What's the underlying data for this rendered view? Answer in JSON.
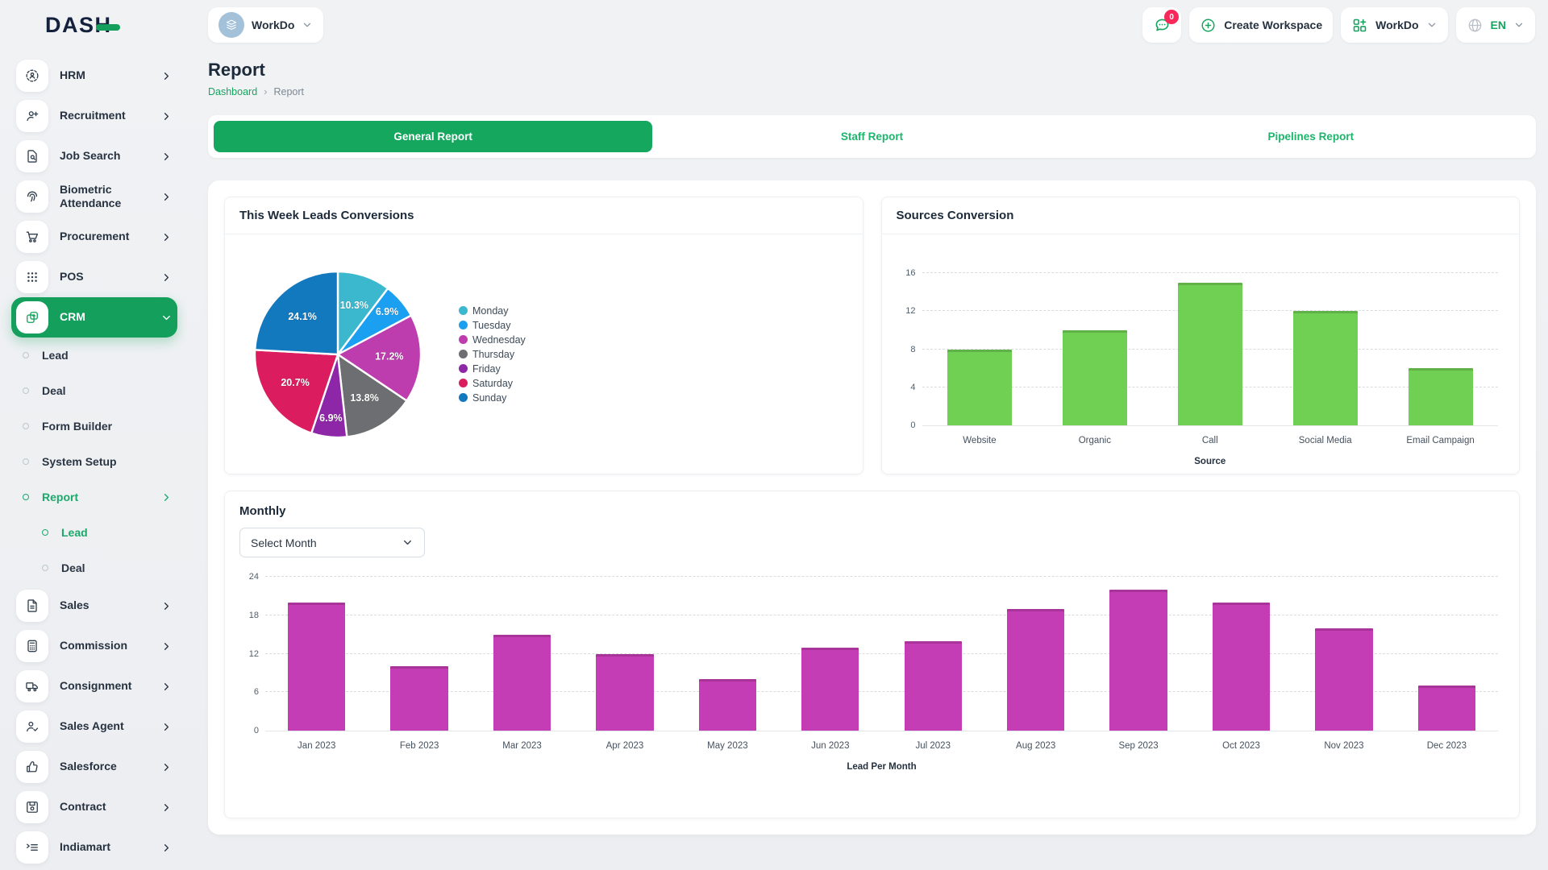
{
  "theme": {
    "accent_green": "#14a05c",
    "badge_pink": "#f8285a"
  },
  "brand": {
    "logo": "DASH"
  },
  "topbar": {
    "workspace_pill": {
      "name": "WorkDo"
    },
    "chat_badge": "0",
    "create_workspace": "Create Workspace",
    "workspace_switcher": "WorkDo",
    "language": "EN"
  },
  "sidebar": {
    "items": [
      {
        "label": "HRM",
        "icon": "hrm-icon",
        "chevron": "right"
      },
      {
        "label": "Recruitment",
        "icon": "recruitment-icon",
        "chevron": "right"
      },
      {
        "label": "Job Search",
        "icon": "job-search-icon",
        "chevron": "right"
      },
      {
        "label": "Biometric Attendance",
        "icon": "biometric-attendance-icon",
        "chevron": "right"
      },
      {
        "label": "Procurement",
        "icon": "procurement-icon",
        "chevron": "right"
      },
      {
        "label": "POS",
        "icon": "pos-icon",
        "chevron": "right"
      },
      {
        "label": "CRM",
        "icon": "crm-icon",
        "chevron": "down",
        "active": true,
        "children": [
          {
            "label": "Lead"
          },
          {
            "label": "Deal"
          },
          {
            "label": "Form Builder"
          },
          {
            "label": "System Setup"
          },
          {
            "label": "Report",
            "active": true,
            "chevron": "right",
            "children": [
              {
                "label": "Lead",
                "active": true
              },
              {
                "label": "Deal"
              }
            ]
          }
        ]
      },
      {
        "label": "Sales",
        "icon": "sales-icon",
        "chevron": "right"
      },
      {
        "label": "Commission",
        "icon": "commission-icon",
        "chevron": "right"
      },
      {
        "label": "Consignment",
        "icon": "consignment-icon",
        "chevron": "right"
      },
      {
        "label": "Sales Agent",
        "icon": "sales-agent-icon",
        "chevron": "right"
      },
      {
        "label": "Salesforce",
        "icon": "salesforce-icon",
        "chevron": "right"
      },
      {
        "label": "Contract",
        "icon": "contract-icon",
        "chevron": "right"
      },
      {
        "label": "Indiamart",
        "icon": "indiamart-icon",
        "chevron": "right"
      }
    ]
  },
  "page": {
    "title": "Report",
    "breadcrumb": {
      "root": "Dashboard",
      "current": "Report"
    }
  },
  "tabs": [
    {
      "label": "General Report",
      "active": true
    },
    {
      "label": "Staff Report",
      "active": false
    },
    {
      "label": "Pipelines Report",
      "active": false
    }
  ],
  "cards": {
    "weekly": {
      "title": "This Week Leads Conversions"
    },
    "sources": {
      "title": "Sources Conversion"
    },
    "monthly": {
      "title": "Monthly",
      "select_placeholder": "Select Month"
    }
  },
  "chart_data": [
    {
      "id": "weekly_leads_pie",
      "type": "pie",
      "title": "This Week Leads Conversions",
      "labels": [
        "Monday",
        "Tuesday",
        "Wednesday",
        "Thursday",
        "Friday",
        "Saturday",
        "Sunday"
      ],
      "values_percent": [
        10.3,
        6.9,
        17.2,
        13.8,
        6.9,
        20.7,
        24.1
      ],
      "slice_labels": [
        "10.3%",
        "6.9%",
        "17.2%",
        "13.8%",
        "6.9%",
        "20.7%",
        "24.1%"
      ],
      "colors": [
        "#3bb8ce",
        "#1b9ff0",
        "#be3dae",
        "#6d6e71",
        "#8d27a8",
        "#db1c5f",
        "#1379be"
      ],
      "legend_position": "right"
    },
    {
      "id": "sources_bar",
      "type": "bar",
      "title": "Sources Conversion",
      "categories": [
        "Website",
        "Organic",
        "Call",
        "Social Media",
        "Email Campaign"
      ],
      "values": [
        8,
        10,
        15,
        12,
        6
      ],
      "xlabel": "Source",
      "ylim": [
        0,
        16
      ],
      "yticks": [
        0,
        4,
        8,
        12,
        16
      ],
      "bar_color": "#70d054",
      "grid": "dashed horizontal"
    },
    {
      "id": "monthly_bar",
      "type": "bar",
      "title": "Monthly",
      "categories": [
        "Jan 2023",
        "Feb 2023",
        "Mar 2023",
        "Apr 2023",
        "May 2023",
        "Jun 2023",
        "Jul 2023",
        "Aug 2023",
        "Sep 2023",
        "Oct 2023",
        "Nov 2023",
        "Dec 2023"
      ],
      "values": [
        20,
        10,
        15,
        12,
        8,
        13,
        14,
        19,
        22,
        20,
        16,
        7
      ],
      "xlabel": "Lead Per Month",
      "ylim": [
        0,
        24
      ],
      "yticks": [
        0,
        6,
        12,
        18,
        24
      ],
      "bar_color": "#c43db4",
      "grid": "dashed horizontal"
    }
  ]
}
